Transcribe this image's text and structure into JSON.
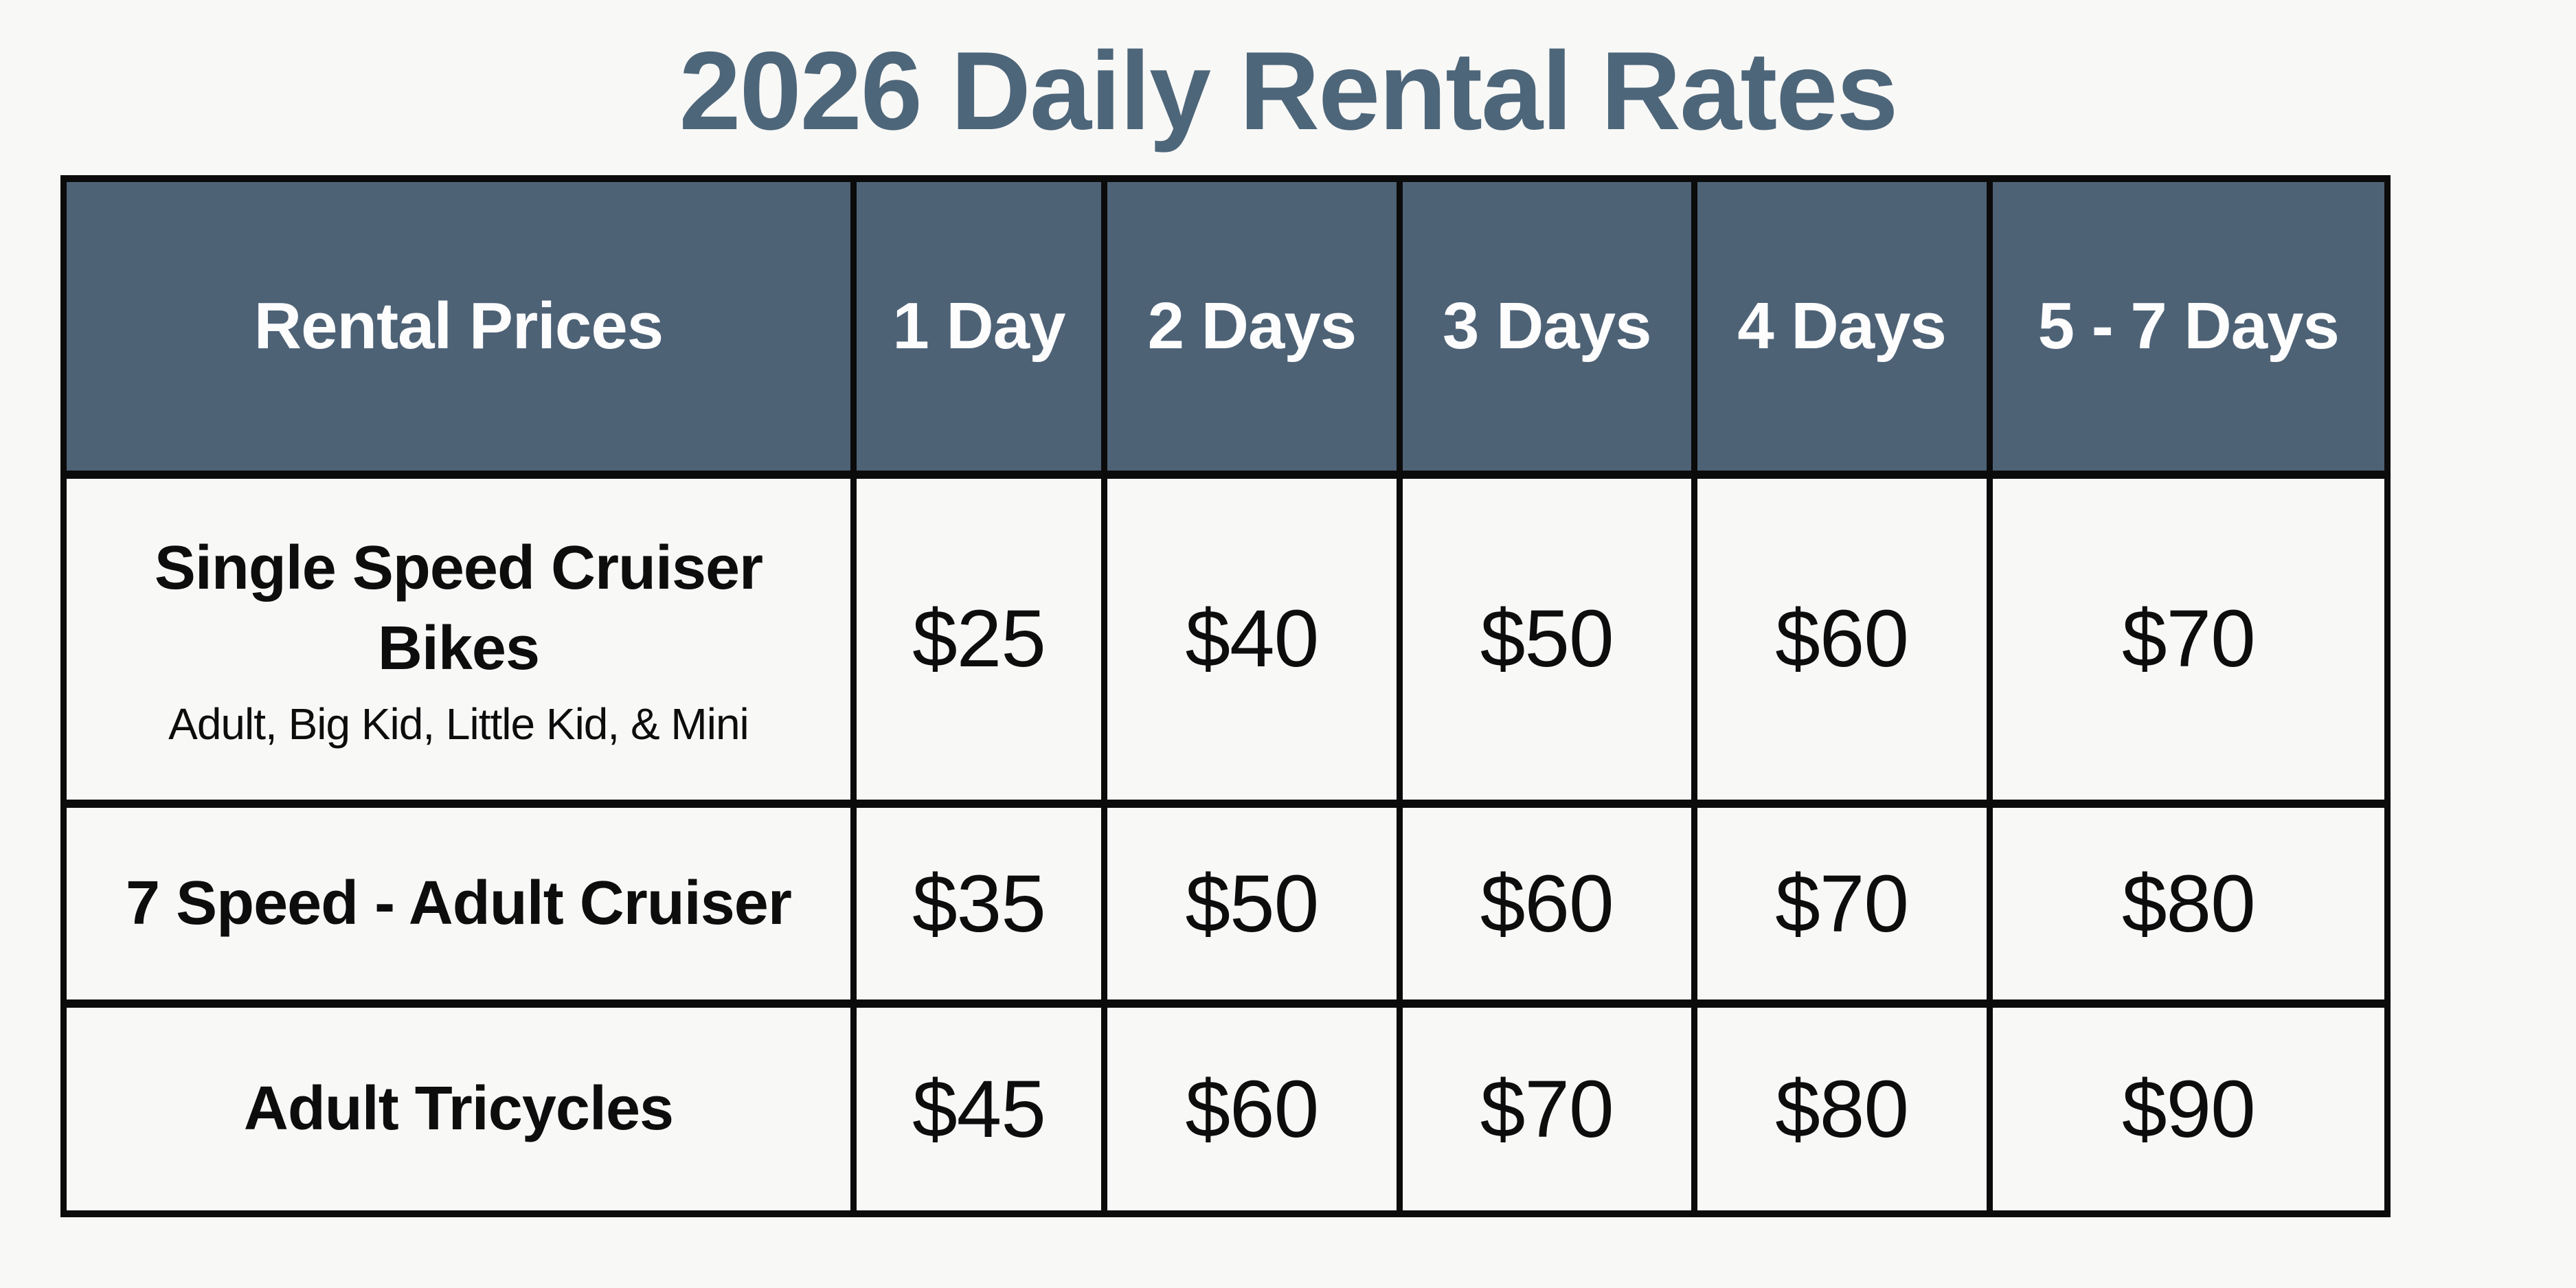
{
  "title": "2026 Daily Rental Rates",
  "colors": {
    "background": "#f8f8f7",
    "title": "#4e6679",
    "header_background": "#4e6276",
    "header_text": "#fdfdfd",
    "border": "#0b0b0b",
    "body_text": "#0d0d0d"
  },
  "table": {
    "columns": [
      "Rental Prices",
      "1 Day",
      "2 Days",
      "3 Days",
      "4 Days",
      "5 - 7 Days"
    ],
    "rows": [
      {
        "label": "Single Speed Cruiser Bikes",
        "sublabel": "Adult, Big Kid, Little Kid, & Mini",
        "prices": [
          "$25",
          "$40",
          "$50",
          "$60",
          "$70"
        ]
      },
      {
        "label": "7 Speed - Adult Cruiser",
        "prices": [
          "$35",
          "$50",
          "$60",
          "$70",
          "$80"
        ]
      },
      {
        "label": "Adult Tricycles",
        "prices": [
          "$45",
          "$60",
          "$70",
          "$80",
          "$90"
        ]
      }
    ]
  },
  "chart_data": {
    "type": "table",
    "title": "2026 Daily Rental Rates",
    "columns": [
      "Rental Prices",
      "1 Day",
      "2 Days",
      "3 Days",
      "4 Days",
      "5 - 7 Days"
    ],
    "rows": [
      [
        "Single Speed Cruiser Bikes (Adult, Big Kid, Little Kid, & Mini)",
        "$25",
        "$40",
        "$50",
        "$60",
        "$70"
      ],
      [
        "7 Speed - Adult Cruiser",
        "$35",
        "$50",
        "$60",
        "$70",
        "$80"
      ],
      [
        "Adult Tricycles",
        "$45",
        "$60",
        "$70",
        "$80",
        "$90"
      ]
    ]
  }
}
